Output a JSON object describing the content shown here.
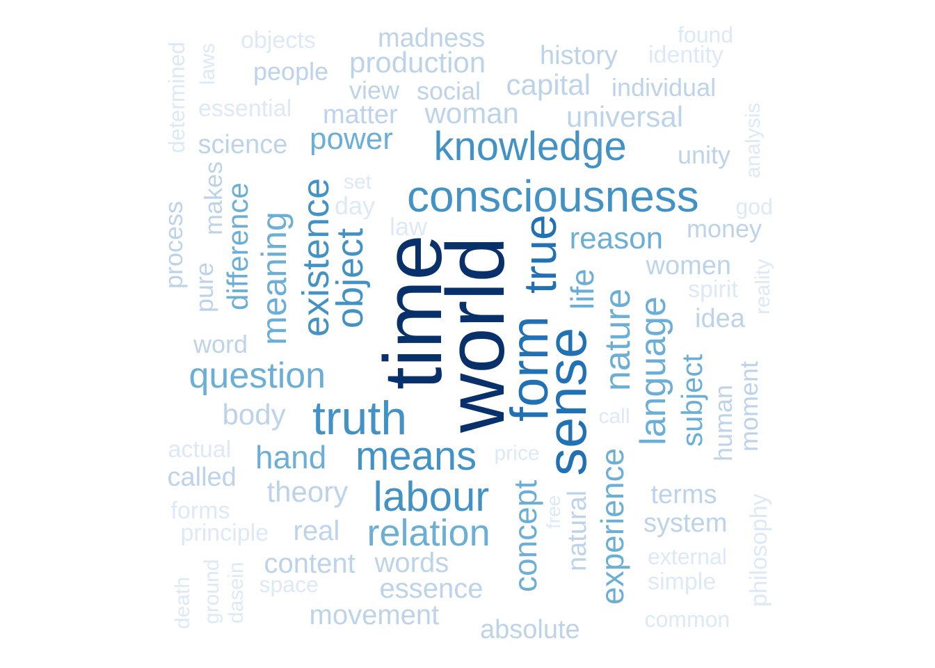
{
  "colors": {
    "background": "#ffffff",
    "c1": "#08306b",
    "c2": "#2171b5",
    "c3": "#4292c6",
    "c4": "#6baed6",
    "c5": "#9ecae1",
    "c6": "#bcd3ea",
    "c7": "#dde9f6"
  },
  "words": [
    {
      "text": "world",
      "tone": "c1"
    },
    {
      "text": "time",
      "tone": "c1"
    },
    {
      "text": "sense",
      "tone": "c2"
    },
    {
      "text": "form",
      "tone": "c2"
    },
    {
      "text": "true",
      "tone": "c2"
    },
    {
      "text": "consciousness",
      "tone": "c3"
    },
    {
      "text": "knowledge",
      "tone": "c3"
    },
    {
      "text": "truth",
      "tone": "c3"
    },
    {
      "text": "means",
      "tone": "c3"
    },
    {
      "text": "labour",
      "tone": "c3"
    },
    {
      "text": "existence",
      "tone": "c3"
    },
    {
      "text": "object",
      "tone": "c3"
    },
    {
      "text": "relation",
      "tone": "c4"
    },
    {
      "text": "question",
      "tone": "c4"
    },
    {
      "text": "nature",
      "tone": "c4"
    },
    {
      "text": "language",
      "tone": "c4"
    },
    {
      "text": "experience",
      "tone": "c4"
    },
    {
      "text": "concept",
      "tone": "c4"
    },
    {
      "text": "life",
      "tone": "c4"
    },
    {
      "text": "reason",
      "tone": "c4"
    },
    {
      "text": "meaning",
      "tone": "c4"
    },
    {
      "text": "power",
      "tone": "c4"
    },
    {
      "text": "hand",
      "tone": "c4"
    },
    {
      "text": "subject",
      "tone": "c4"
    },
    {
      "text": "difference",
      "tone": "c4"
    },
    {
      "text": "woman",
      "tone": "c6"
    },
    {
      "text": "universal",
      "tone": "c6"
    },
    {
      "text": "matter",
      "tone": "c6"
    },
    {
      "text": "production",
      "tone": "c6"
    },
    {
      "text": "madness",
      "tone": "c6"
    },
    {
      "text": "capital",
      "tone": "c6"
    },
    {
      "text": "history",
      "tone": "c6"
    },
    {
      "text": "individual",
      "tone": "c6"
    },
    {
      "text": "science",
      "tone": "c6"
    },
    {
      "text": "theory",
      "tone": "c6"
    },
    {
      "text": "body",
      "tone": "c6"
    },
    {
      "text": "content",
      "tone": "c6"
    },
    {
      "text": "words",
      "tone": "c6"
    },
    {
      "text": "essence",
      "tone": "c6"
    },
    {
      "text": "movement",
      "tone": "c6"
    },
    {
      "text": "real",
      "tone": "c6"
    },
    {
      "text": "absolute",
      "tone": "c6"
    },
    {
      "text": "system",
      "tone": "c6"
    },
    {
      "text": "terms",
      "tone": "c6"
    },
    {
      "text": "idea",
      "tone": "c6"
    },
    {
      "text": "women",
      "tone": "c6"
    },
    {
      "text": "money",
      "tone": "c6"
    },
    {
      "text": "unity",
      "tone": "c6"
    },
    {
      "text": "people",
      "tone": "c6"
    },
    {
      "text": "view",
      "tone": "c6"
    },
    {
      "text": "social",
      "tone": "c6"
    },
    {
      "text": "called",
      "tone": "c6"
    },
    {
      "text": "natural",
      "tone": "c6"
    },
    {
      "text": "human",
      "tone": "c6"
    },
    {
      "text": "moment",
      "tone": "c6"
    },
    {
      "text": "word",
      "tone": "c6"
    },
    {
      "text": "pure",
      "tone": "c6"
    },
    {
      "text": "makes",
      "tone": "c6"
    },
    {
      "text": "process",
      "tone": "c6"
    },
    {
      "text": "essential",
      "tone": "c7"
    },
    {
      "text": "objects",
      "tone": "c7"
    },
    {
      "text": "laws",
      "tone": "c7"
    },
    {
      "text": "determined",
      "tone": "c7"
    },
    {
      "text": "found",
      "tone": "c7"
    },
    {
      "text": "identity",
      "tone": "c7"
    },
    {
      "text": "analysis",
      "tone": "c7"
    },
    {
      "text": "god",
      "tone": "c7"
    },
    {
      "text": "reality",
      "tone": "c7"
    },
    {
      "text": "spirit",
      "tone": "c7"
    },
    {
      "text": "set",
      "tone": "c7"
    },
    {
      "text": "day",
      "tone": "c7"
    },
    {
      "text": "law",
      "tone": "c7"
    },
    {
      "text": "call",
      "tone": "c7"
    },
    {
      "text": "price",
      "tone": "c7"
    },
    {
      "text": "free",
      "tone": "c7"
    },
    {
      "text": "actual",
      "tone": "c7"
    },
    {
      "text": "forms",
      "tone": "c7"
    },
    {
      "text": "principle",
      "tone": "c7"
    },
    {
      "text": "space",
      "tone": "c7"
    },
    {
      "text": "external",
      "tone": "c7"
    },
    {
      "text": "simple",
      "tone": "c7"
    },
    {
      "text": "common",
      "tone": "c7"
    },
    {
      "text": "philosophy",
      "tone": "c7"
    },
    {
      "text": "death",
      "tone": "c7"
    },
    {
      "text": "ground",
      "tone": "c7"
    },
    {
      "text": "dasein",
      "tone": "c7"
    }
  ]
}
